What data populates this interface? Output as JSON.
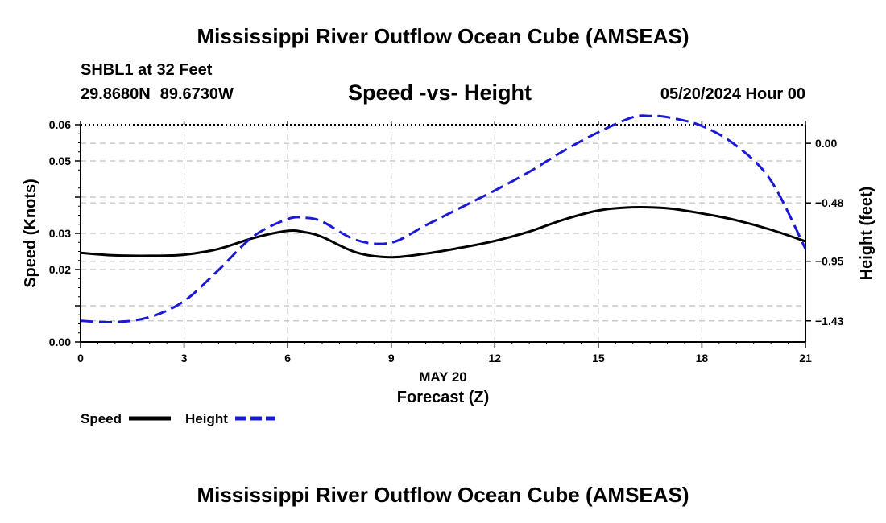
{
  "page_title": "Mississippi River Outflow Ocean Cube (AMSEAS)",
  "station": {
    "name": "SHBL1 at 32 Feet",
    "lat": "29.8680N",
    "lon": "89.6730W"
  },
  "datetime": "05/20/2024 Hour 00",
  "footer_title": "Mississippi River Outflow Ocean Cube (AMSEAS)",
  "chart_data": {
    "type": "line",
    "title": "Speed -vs- Height",
    "xlabel_date": "MAY 20",
    "xlabel": "Forecast (Z)",
    "ylabel_left": "Speed (Knots)",
    "ylabel_right": "Height (feet)",
    "xlim": [
      0,
      21
    ],
    "ylim_left": [
      0,
      0.06
    ],
    "ylim_right": [
      -1.6,
      0.15
    ],
    "grid": true,
    "x_ticks": [
      0,
      3,
      6,
      9,
      12,
      15,
      18,
      21
    ],
    "x_tick_labels": [
      "0",
      "3",
      "6",
      "9",
      "12",
      "15",
      "18",
      "21"
    ],
    "left_ticks": [
      0,
      0.01,
      0.02,
      0.03,
      0.04,
      0.05,
      0.06
    ],
    "left_tick_labels": [
      "0.00",
      "",
      "0.02",
      "0.03",
      "",
      "0.05",
      "0.06"
    ],
    "right_ticks": [
      0.0,
      -0.48,
      -0.95,
      -1.43
    ],
    "right_tick_labels": [
      "0.00",
      "−0.48",
      "−0.95",
      "−1.43"
    ],
    "legend_position": "bottom-left",
    "series": [
      {
        "name": "Speed",
        "axis": "left",
        "color": "#000000",
        "style": "solid",
        "x": [
          0,
          1,
          2,
          3,
          4,
          5,
          6,
          6.5,
          7,
          8,
          9,
          10,
          11,
          12,
          13,
          14,
          15,
          16,
          17,
          18,
          19,
          20,
          21
        ],
        "values": [
          0.0246,
          0.0239,
          0.0238,
          0.0241,
          0.0257,
          0.0287,
          0.0307,
          0.0303,
          0.029,
          0.0247,
          0.0234,
          0.0244,
          0.026,
          0.0279,
          0.0305,
          0.0338,
          0.0363,
          0.0372,
          0.0369,
          0.0355,
          0.0336,
          0.031,
          0.0278
        ]
      },
      {
        "name": "Height",
        "axis": "right",
        "color": "#1a1ad6",
        "style": "dashed",
        "x": [
          0,
          1,
          2,
          3,
          4,
          5,
          6,
          6.5,
          7,
          8,
          9,
          10,
          11,
          12,
          13,
          14,
          15,
          16,
          16.5,
          17,
          18,
          19,
          20,
          21
        ],
        "values": [
          -1.43,
          -1.44,
          -1.4,
          -1.27,
          -1.02,
          -0.75,
          -0.61,
          -0.6,
          -0.63,
          -0.78,
          -0.8,
          -0.66,
          -0.52,
          -0.38,
          -0.23,
          -0.06,
          0.09,
          0.21,
          0.22,
          0.21,
          0.14,
          -0.02,
          -0.3,
          -0.85
        ]
      }
    ]
  }
}
